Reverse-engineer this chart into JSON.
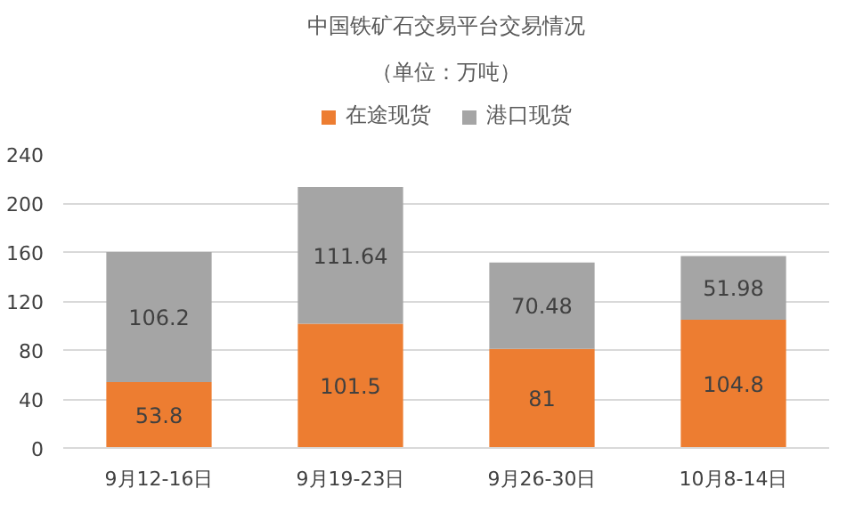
{
  "chart_data": {
    "type": "bar",
    "title": "中国铁矿石交易平台交易情况",
    "subtitle": "（单位：万吨）",
    "categories": [
      "9月12-16日",
      "9月19-23日",
      "9月26-30日",
      "10月8-14日"
    ],
    "stacked": true,
    "series": [
      {
        "name": "在途现货",
        "color": "#ed7d31",
        "values": [
          53.8,
          101.5,
          81,
          104.8
        ]
      },
      {
        "name": "港口现货",
        "color": "#a5a5a5",
        "values": [
          106.2,
          111.64,
          70.48,
          51.98
        ]
      }
    ],
    "ylim": [
      0,
      240
    ],
    "yticks": [
      0,
      40,
      80,
      120,
      160,
      200,
      240
    ],
    "grid": "y",
    "legend": "top",
    "data_labels": true
  }
}
